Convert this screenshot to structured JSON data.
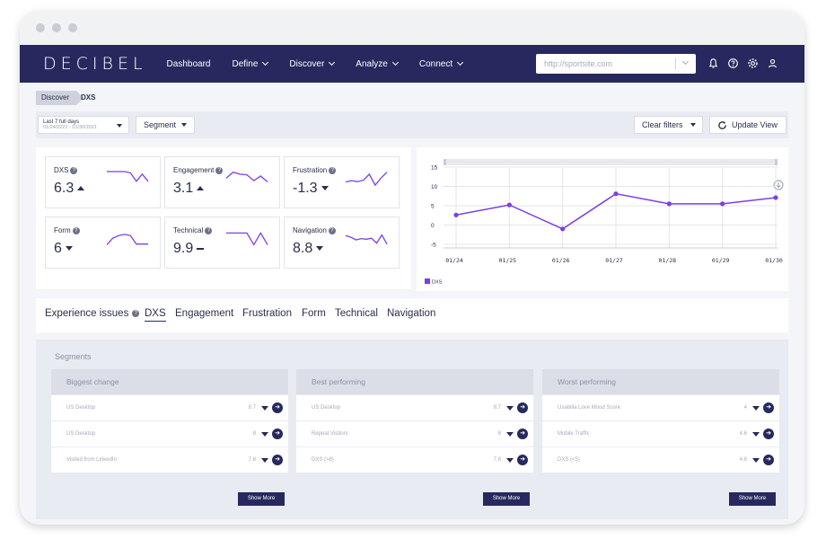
{
  "nav": {
    "logo": "DECIBEL",
    "items": [
      {
        "label": "Dashboard",
        "dropdown": false
      },
      {
        "label": "Define",
        "dropdown": true
      },
      {
        "label": "Discover",
        "dropdown": true
      },
      {
        "label": "Analyze",
        "dropdown": true
      },
      {
        "label": "Connect",
        "dropdown": true
      }
    ],
    "url_placeholder": "http://sportsite.com",
    "icons": [
      "bell-icon",
      "help-icon",
      "gear-icon",
      "user-icon"
    ]
  },
  "breadcrumb": {
    "parent": "Discover",
    "current": "DXS"
  },
  "filters": {
    "date_label": "Last 7 full days",
    "date_range": "01/24/2021 - 01/30/2021",
    "segment_label": "Segment",
    "clear_label": "Clear filters",
    "update_label": "Update View"
  },
  "metrics": [
    {
      "label": "DXS",
      "value": "6.3",
      "trend": "up",
      "spark": [
        5,
        5,
        5,
        5,
        4.6,
        2,
        4.2,
        2
      ]
    },
    {
      "label": "Engagement",
      "value": "3.1",
      "trend": "up",
      "spark": [
        3,
        4.8,
        4.2,
        4.0,
        2.2,
        3.6,
        1.8
      ]
    },
    {
      "label": "Frustration",
      "value": "-1.3",
      "trend": "down",
      "spark": [
        1.8,
        2.2,
        1.9,
        2.3,
        4.2,
        0.8,
        3.0,
        4.8
      ]
    },
    {
      "label": "Form",
      "value": "6",
      "trend": "down",
      "spark": [
        1,
        3,
        3.8,
        4.2,
        3.8,
        1.2,
        1.2,
        1.2
      ]
    },
    {
      "label": "Technical",
      "value": "9.9",
      "trend": "flat",
      "spark": [
        4.6,
        4.6,
        4.6,
        4.6,
        1.0,
        4.6,
        1.0
      ]
    },
    {
      "label": "Navigation",
      "value": "8.8",
      "trend": "down",
      "spark": [
        3.8,
        3.3,
        2.5,
        2.9,
        2.7,
        3.0,
        1.5,
        4.0,
        1.2
      ]
    }
  ],
  "chart_data": {
    "type": "line",
    "categories": [
      "01/24",
      "01/25",
      "01/26",
      "01/27",
      "01/28",
      "01/29",
      "01/30"
    ],
    "series": [
      {
        "name": "DXS",
        "values": [
          2.6,
          5.2,
          -1.0,
          8.1,
          5.5,
          5.5,
          7.1
        ]
      }
    ],
    "ylim": [
      -5,
      15
    ],
    "yticks": [
      "15",
      "10",
      "5",
      "0",
      "-5"
    ],
    "grid": true,
    "legend": "bottom-left",
    "color": "#7b3fe4"
  },
  "tabs": [
    {
      "label": "Experience issues",
      "active": false,
      "help": true
    },
    {
      "label": "DXS",
      "active": true
    },
    {
      "label": "Engagement",
      "active": false
    },
    {
      "label": "Frustration",
      "active": false
    },
    {
      "label": "Form",
      "active": false
    },
    {
      "label": "Technical",
      "active": false
    },
    {
      "label": "Navigation",
      "active": false
    }
  ],
  "segments": {
    "title": "Segments",
    "show_more": "Show More",
    "columns": [
      {
        "title": "Biggest change",
        "rows": [
          {
            "name": "US Desktop",
            "value": "8.7"
          },
          {
            "name": "US Desktop",
            "value": "8"
          },
          {
            "name": "Visited from LinkedIn",
            "value": "7.8"
          }
        ]
      },
      {
        "title": "Best performing",
        "rows": [
          {
            "name": "US Desktop",
            "value": "8.7"
          },
          {
            "name": "Repeat Visitors",
            "value": "8"
          },
          {
            "name": "DXS (>8)",
            "value": "7.8"
          }
        ]
      },
      {
        "title": "Worst performing",
        "rows": [
          {
            "name": "Usabilla Love Mood Score",
            "value": "4"
          },
          {
            "name": "Mobile Traffic",
            "value": "4.6"
          },
          {
            "name": "DXS (<5)",
            "value": "4.8"
          }
        ]
      }
    ]
  }
}
